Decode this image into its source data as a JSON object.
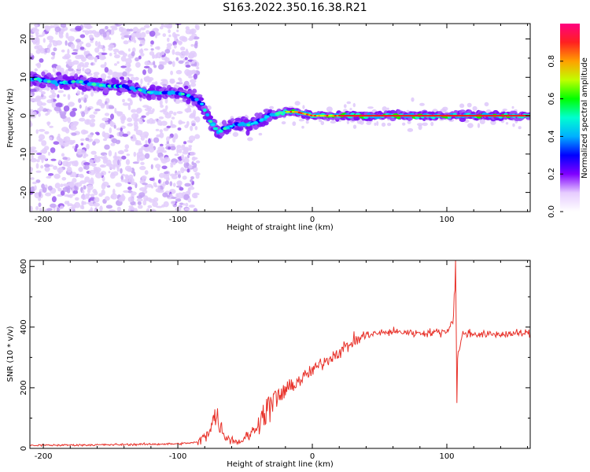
{
  "title": "S163.2022.350.16.38.R21",
  "chart_data": [
    {
      "type": "heatmap",
      "xlabel": "Height of straight line (km)",
      "ylabel": "Frequency (Hz)",
      "xlim": [
        -210,
        162
      ],
      "ylim": [
        -25,
        24
      ],
      "xticks": [
        -200,
        -100,
        0,
        100
      ],
      "yticks": [
        -20,
        -10,
        0,
        10,
        20
      ],
      "ridge": [
        {
          "x": -205,
          "y": 9.5
        },
        {
          "x": -190,
          "y": 8.5
        },
        {
          "x": -175,
          "y": 9
        },
        {
          "x": -160,
          "y": 8
        },
        {
          "x": -140,
          "y": 7.5
        },
        {
          "x": -120,
          "y": 6
        },
        {
          "x": -100,
          "y": 6
        },
        {
          "x": -90,
          "y": 5
        },
        {
          "x": -82,
          "y": 3
        },
        {
          "x": -75,
          "y": -2
        },
        {
          "x": -70,
          "y": -4
        },
        {
          "x": -62,
          "y": -3
        },
        {
          "x": -55,
          "y": -2
        },
        {
          "x": -48,
          "y": -2.5
        },
        {
          "x": -40,
          "y": -1.5
        },
        {
          "x": -32,
          "y": 0
        },
        {
          "x": -20,
          "y": 1
        },
        {
          "x": -12,
          "y": 1
        },
        {
          "x": 0,
          "y": 0
        },
        {
          "x": 20,
          "y": 0
        },
        {
          "x": 60,
          "y": 0
        },
        {
          "x": 100,
          "y": 0
        },
        {
          "x": 162,
          "y": 0
        }
      ],
      "colorbar": {
        "label": "Normalized spectral amplitude",
        "ticks": [
          0.0,
          0.2,
          0.4,
          0.6,
          0.8
        ],
        "colors": [
          "#ffffff",
          "#e6ccff",
          "#8000ff",
          "#0000ff",
          "#00b0ff",
          "#00ffd0",
          "#00ff00",
          "#c0ff00",
          "#ffa000",
          "#ff2020",
          "#ff0080"
        ]
      }
    },
    {
      "type": "line",
      "xlabel": "Height of straight line (km)",
      "ylabel": "SNR (10 * v/v)",
      "xlim": [
        -210,
        162
      ],
      "ylim": [
        0,
        620
      ],
      "xticks": [
        -200,
        -100,
        0,
        100
      ],
      "yticks": [
        0,
        200,
        400,
        600
      ],
      "color": "#e8322a",
      "profile": [
        {
          "x": -210,
          "y": 10
        },
        {
          "x": -150,
          "y": 12
        },
        {
          "x": -100,
          "y": 15
        },
        {
          "x": -85,
          "y": 20
        },
        {
          "x": -78,
          "y": 50
        },
        {
          "x": -72,
          "y": 110
        },
        {
          "x": -65,
          "y": 40
        },
        {
          "x": -55,
          "y": 20
        },
        {
          "x": -45,
          "y": 50
        },
        {
          "x": -38,
          "y": 100
        },
        {
          "x": -30,
          "y": 150
        },
        {
          "x": -20,
          "y": 190
        },
        {
          "x": -5,
          "y": 240
        },
        {
          "x": 10,
          "y": 290
        },
        {
          "x": 20,
          "y": 320
        },
        {
          "x": 30,
          "y": 350
        },
        {
          "x": 40,
          "y": 375
        },
        {
          "x": 60,
          "y": 385
        },
        {
          "x": 80,
          "y": 380
        },
        {
          "x": 100,
          "y": 385
        },
        {
          "x": 104,
          "y": 420
        },
        {
          "x": 106,
          "y": 520
        },
        {
          "x": 108,
          "y": 300
        },
        {
          "x": 112,
          "y": 380
        },
        {
          "x": 130,
          "y": 375
        },
        {
          "x": 162,
          "y": 380
        }
      ]
    }
  ]
}
